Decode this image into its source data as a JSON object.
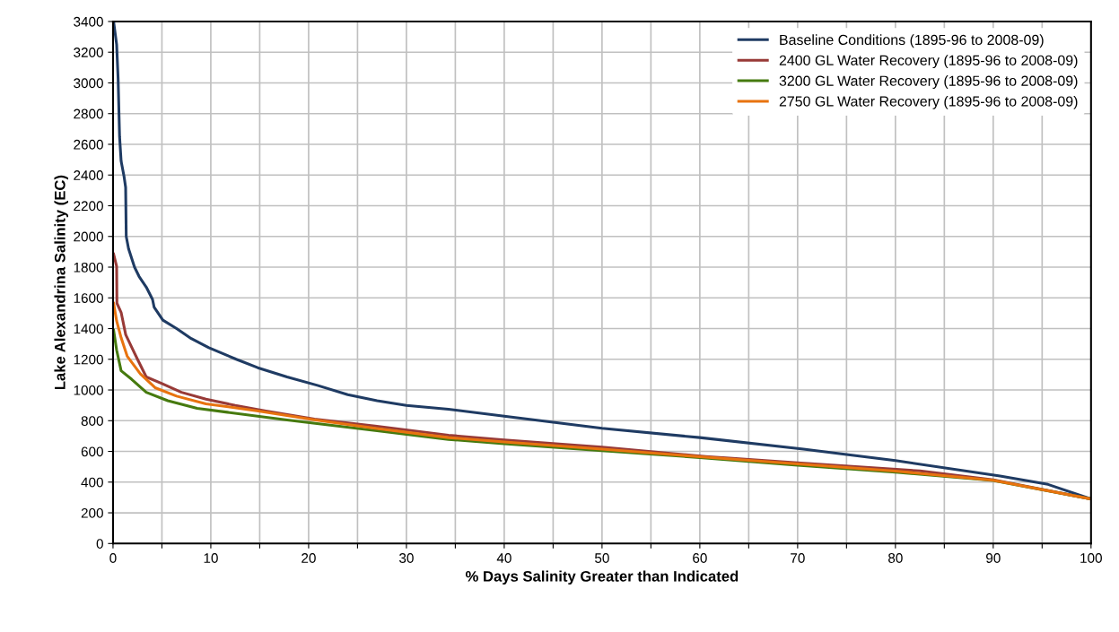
{
  "chart_data": {
    "type": "line",
    "xlabel": "% Days Salinity Greater than Indicated",
    "ylabel": "Lake Alexandrina Salinity (EC)",
    "xlim": [
      0,
      100
    ],
    "xticks": [
      0,
      {
        "value": 5,
        "label": null
      },
      10,
      {
        "value": 15,
        "label": null
      },
      20,
      {
        "value": 25,
        "label": null
      },
      30,
      {
        "value": 35,
        "label": null
      },
      40,
      {
        "value": 45,
        "label": null
      },
      50,
      {
        "value": 55,
        "label": null
      },
      60,
      {
        "value": 65,
        "label": null
      },
      70,
      {
        "value": 75,
        "label": null
      },
      80,
      {
        "value": 85,
        "label": null
      },
      90,
      {
        "value": 95,
        "label": null
      },
      100
    ],
    "ylim": [
      0,
      3400
    ],
    "yticks": [
      0,
      200,
      400,
      600,
      800,
      1000,
      1200,
      1400,
      1600,
      1800,
      2000,
      2200,
      2400,
      2600,
      2800,
      3000,
      3200,
      3400
    ],
    "grid": true,
    "legend": "top right",
    "marker": "none",
    "line_style": "solid",
    "series": [
      {
        "name": "Baseline Conditions (1895-96 to 2008-09)",
        "color": "#1f3b63",
        "x": [
          0.06,
          0.37,
          0.52,
          0.67,
          0.83,
          1.13,
          1.29,
          1.35,
          1.59,
          2.2,
          2.66,
          3.4,
          4.04,
          4.2,
          5.1,
          6.5,
          8.0,
          9.8,
          12.6,
          14.8,
          17.8,
          20.9,
          24.0,
          27.0,
          30.0,
          34.3,
          40,
          50,
          60,
          70.6,
          80,
          90.7,
          95.6,
          100
        ],
        "values": [
          3400,
          3250,
          3030,
          2650,
          2490,
          2390,
          2320,
          2000,
          1920,
          1800,
          1740,
          1670,
          1590,
          1540,
          1455,
          1400,
          1335,
          1275,
          1200,
          1145,
          1085,
          1030,
          970,
          930,
          900,
          875,
          830,
          750,
          690,
          615,
          540,
          440,
          385,
          290
        ]
      },
      {
        "name": "2400 GL Water Recovery (1895-96 to 2008-09)",
        "color": "#983a37",
        "x": [
          0.06,
          0.37,
          0.4,
          0.83,
          1.3,
          1.9,
          2.5,
          3.4,
          4.9,
          7.0,
          9.5,
          12.5,
          15.5,
          20.6,
          26.8,
          34.3,
          40,
          50,
          60.6,
          70,
          82.5,
          90,
          100
        ],
        "values": [
          1885,
          1805,
          1565,
          1505,
          1360,
          1280,
          1200,
          1085,
          1045,
          985,
          940,
          900,
          865,
          810,
          765,
          705,
          675,
          628,
          567,
          525,
          473,
          415,
          290
        ]
      },
      {
        "name": "3200 GL Water Recovery (1895-96 to 2008-09)",
        "color": "#467a0f",
        "x": [
          0.06,
          0.37,
          0.83,
          1.9,
          3.4,
          5.6,
          8.6,
          11.7,
          17.8,
          27.0,
          34.3,
          40,
          50,
          60,
          70,
          80,
          90,
          100
        ],
        "values": [
          1390,
          1260,
          1125,
          1070,
          985,
          930,
          880,
          855,
          805,
          735,
          678,
          650,
          605,
          560,
          510,
          465,
          410,
          290
        ]
      },
      {
        "name": "2750 GL Water Recovery (1895-96 to 2008-09)",
        "color": "#e8730f",
        "x": [
          0.06,
          0.37,
          0.83,
          1.45,
          2.8,
          4.3,
          6.5,
          9.5,
          14.7,
          20.7,
          26.8,
          34.3,
          40,
          50,
          60,
          70,
          80,
          90,
          100
        ],
        "values": [
          1565,
          1450,
          1340,
          1220,
          1105,
          1015,
          960,
          910,
          865,
          805,
          750,
          690,
          662,
          615,
          565,
          518,
          472,
          412,
          290
        ]
      }
    ]
  }
}
